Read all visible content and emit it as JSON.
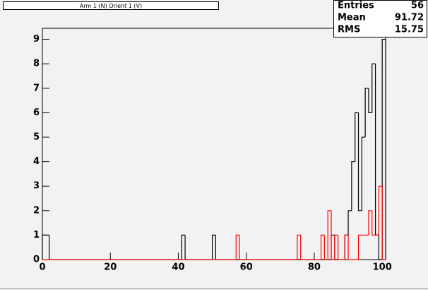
{
  "chart_data": {
    "type": "histogram",
    "title": "Arm 1 (N) Orient 1 (V)",
    "bins": [
      0,
      1,
      2,
      3,
      4,
      5,
      6,
      7,
      8,
      9,
      10,
      11,
      12,
      13,
      14,
      15,
      16,
      17,
      18,
      19,
      20,
      21,
      22,
      23,
      24,
      25,
      26,
      27,
      28,
      29,
      30,
      31,
      32,
      33,
      34,
      35,
      36,
      37,
      38,
      39,
      40,
      41,
      42,
      43,
      44,
      45,
      46,
      47,
      48,
      49,
      50,
      51,
      52,
      53,
      54,
      55,
      56,
      57,
      58,
      59,
      60,
      61,
      62,
      63,
      64,
      65,
      66,
      67,
      68,
      69,
      70,
      71,
      72,
      73,
      74,
      75,
      76,
      77,
      78,
      79,
      80,
      81,
      82,
      83,
      84,
      85,
      86,
      87,
      88,
      89,
      90,
      91,
      92,
      93,
      94,
      95,
      96,
      97,
      98,
      99,
      100,
      101
    ],
    "series": [
      {
        "color": "#000000",
        "values": [
          1,
          1,
          0,
          0,
          0,
          0,
          0,
          0,
          0,
          0,
          0,
          0,
          0,
          0,
          0,
          0,
          0,
          0,
          0,
          0,
          0,
          0,
          0,
          0,
          0,
          0,
          0,
          0,
          0,
          0,
          0,
          0,
          0,
          0,
          0,
          0,
          0,
          0,
          0,
          0,
          0,
          1,
          0,
          0,
          0,
          0,
          0,
          0,
          0,
          0,
          1,
          0,
          0,
          0,
          0,
          0,
          0,
          0,
          0,
          0,
          0,
          0,
          0,
          0,
          0,
          0,
          0,
          0,
          0,
          0,
          0,
          0,
          0,
          0,
          0,
          0,
          0,
          0,
          0,
          0,
          0,
          0,
          0,
          0,
          0,
          1,
          0,
          0,
          0,
          1,
          2,
          4,
          6,
          2,
          5,
          7,
          6,
          8,
          1,
          0,
          9
        ]
      },
      {
        "color": "#ff0000",
        "values": [
          0,
          0,
          0,
          0,
          0,
          0,
          0,
          0,
          0,
          0,
          0,
          0,
          0,
          0,
          0,
          0,
          0,
          0,
          0,
          0,
          0,
          0,
          0,
          0,
          0,
          0,
          0,
          0,
          0,
          0,
          0,
          0,
          0,
          0,
          0,
          0,
          0,
          0,
          0,
          0,
          0,
          0,
          0,
          0,
          0,
          0,
          0,
          0,
          0,
          0,
          0,
          0,
          0,
          0,
          0,
          0,
          0,
          1,
          0,
          0,
          0,
          0,
          0,
          0,
          0,
          0,
          0,
          0,
          0,
          0,
          0,
          0,
          0,
          0,
          0,
          1,
          0,
          0,
          0,
          0,
          0,
          0,
          1,
          0,
          2,
          0,
          1,
          0,
          0,
          1,
          0,
          0,
          0,
          1,
          1,
          1,
          2,
          1,
          1,
          3,
          0
        ]
      }
    ],
    "xlim": [
      0,
      101
    ],
    "xticks": [
      0,
      20,
      40,
      60,
      80,
      100
    ],
    "ylim": [
      0,
      9.45
    ],
    "yticks": [
      0,
      1,
      2,
      3,
      4,
      5,
      6,
      7,
      8,
      9
    ],
    "stats": [
      {
        "label": "Entries",
        "value": 56
      },
      {
        "label": "Mean",
        "value": 91.72
      },
      {
        "label": "RMS",
        "value": 15.75
      }
    ]
  }
}
